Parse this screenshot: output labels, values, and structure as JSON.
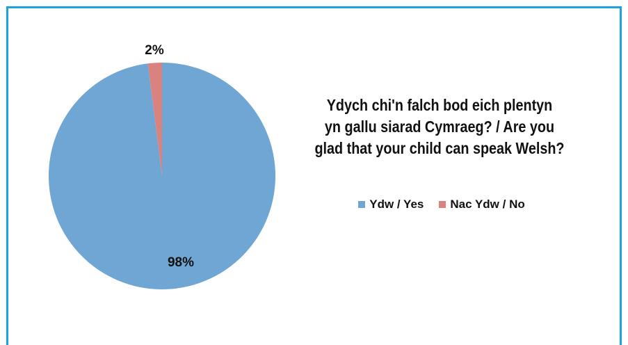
{
  "chart_data": {
    "type": "pie",
    "title_lines": [
      "Ydych chi'n falch bod eich plentyn",
      "yn gallu siarad Cymraeg? / Are you",
      "glad that your child can speak Welsh?"
    ],
    "slices": [
      {
        "label": "Ydw / Yes",
        "value": 98,
        "value_label": "98%",
        "color": "#6fa6d3"
      },
      {
        "label": "Nac Ydw / No",
        "value": 2,
        "value_label": "2%",
        "color": "#d98280"
      }
    ],
    "legend_position": "right, below title"
  },
  "frame": {
    "border_color": "#1aa3dd"
  }
}
